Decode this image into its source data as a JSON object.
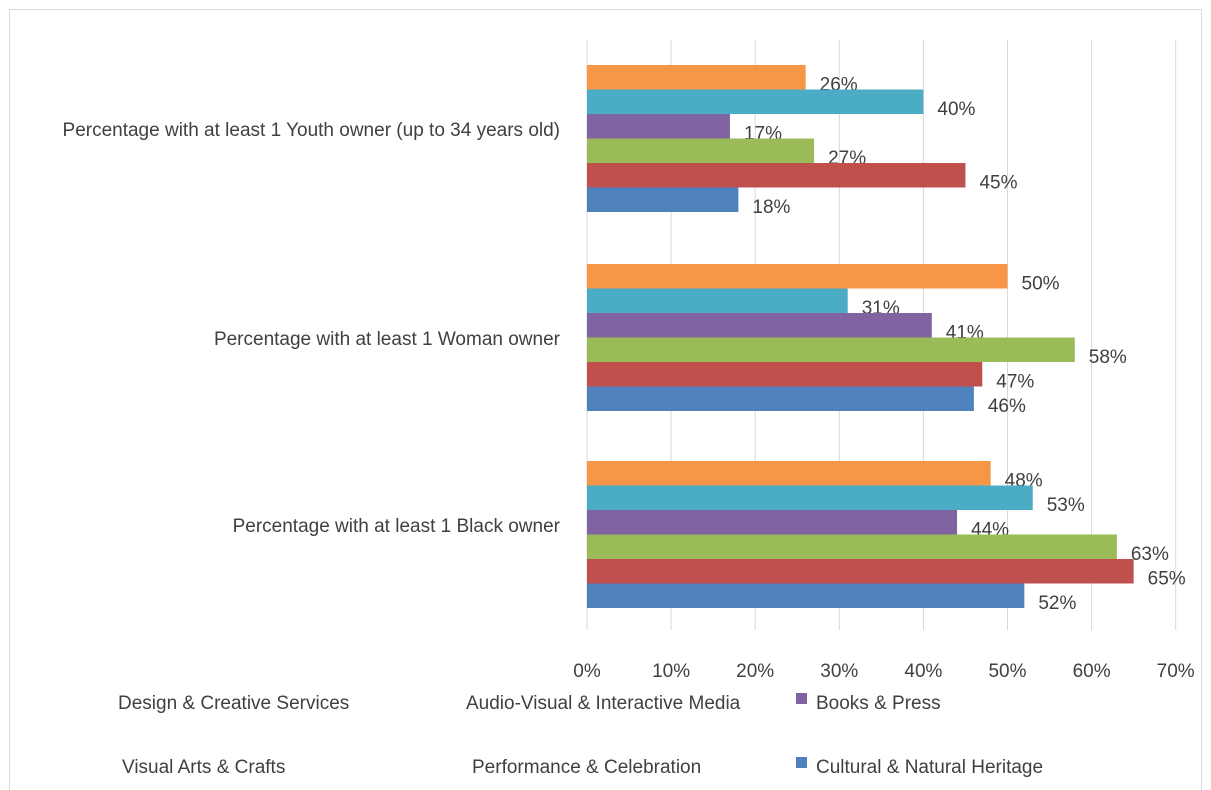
{
  "chart_data": {
    "type": "bar",
    "orientation": "horizontal",
    "title": "",
    "xlabel": "",
    "ylabel": "",
    "xlim": [
      0,
      70
    ],
    "x_ticks": [
      "0%",
      "10%",
      "20%",
      "30%",
      "40%",
      "50%",
      "60%",
      "70%"
    ],
    "grid": true,
    "legend_position": "bottom",
    "categories": [
      "Percentage with at least 1 Youth owner (up to 34 years old)",
      "Percentage with at least 1 Woman owner",
      "Percentage with at least 1 Black owner"
    ],
    "series": [
      {
        "name": "Design & Creative Services",
        "color": "#f79646",
        "values": [
          26,
          50,
          48
        ],
        "labels": [
          "26%",
          "50%",
          "48%"
        ],
        "show_swatch": false
      },
      {
        "name": "Audio-Visual & Interactive Media",
        "color": "#4bacc6",
        "values": [
          40,
          31,
          53
        ],
        "labels": [
          "40%",
          "31%",
          "53%"
        ],
        "show_swatch": false
      },
      {
        "name": "Books & Press",
        "color": "#8064a2",
        "values": [
          17,
          41,
          44
        ],
        "labels": [
          "17%",
          "41%",
          "44%"
        ],
        "show_swatch": true
      },
      {
        "name": "Visual Arts & Crafts",
        "color": "#9bbb59",
        "values": [
          27,
          58,
          63
        ],
        "labels": [
          "27%",
          "58%",
          "63%"
        ],
        "show_swatch": false
      },
      {
        "name": "Performance & Celebration",
        "color": "#c0504d",
        "values": [
          45,
          47,
          65
        ],
        "labels": [
          "45%",
          "47%",
          "65%"
        ],
        "show_swatch": false
      },
      {
        "name": "Cultural & Natural Heritage",
        "color": "#4f81bd",
        "values": [
          18,
          46,
          52
        ],
        "labels": [
          "18%",
          "46%",
          "52%"
        ],
        "show_swatch": true
      }
    ]
  }
}
